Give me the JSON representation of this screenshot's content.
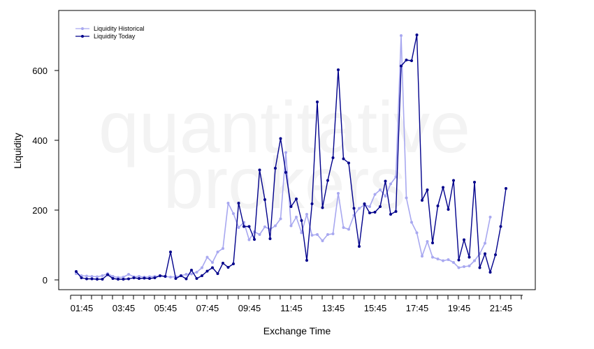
{
  "chart_data": {
    "type": "line",
    "watermark": [
      "quantitative",
      "brokers"
    ],
    "xlabel": "Exchange Time",
    "ylabel": "Liquidity",
    "x_tick_labels": [
      "01:45",
      "03:45",
      "05:45",
      "07:45",
      "09:45",
      "11:45",
      "13:45",
      "15:45",
      "17:45",
      "19:45",
      "21:45"
    ],
    "y_ticks": [
      0,
      200,
      400,
      600
    ],
    "ylim": [
      -27,
      770
    ],
    "legend_position": "top-left",
    "series": [
      {
        "name": "Liquidity Historical",
        "color": "#a8a8f0",
        "values": [
          18,
          12,
          11,
          10,
          9,
          12,
          18,
          10,
          7,
          8,
          16,
          9,
          10,
          8,
          9,
          10,
          11,
          10,
          8,
          9,
          12,
          16,
          17,
          22,
          35,
          65,
          50,
          80,
          90,
          220,
          190,
          150,
          165,
          115,
          138,
          130,
          152,
          145,
          155,
          175,
          365,
          155,
          180,
          135,
          188,
          128,
          130,
          112,
          130,
          132,
          248,
          150,
          145,
          185,
          205,
          215,
          210,
          245,
          258,
          240,
          275,
          295,
          700,
          235,
          165,
          135,
          68,
          110,
          65,
          60,
          55,
          58,
          50,
          35,
          38,
          40,
          55,
          75,
          105,
          180
        ]
      },
      {
        "name": "Liquidity Today",
        "color": "#00008b",
        "values": [
          24,
          6,
          3,
          3,
          2,
          2,
          15,
          4,
          2,
          2,
          3,
          6,
          4,
          5,
          4,
          6,
          12,
          10,
          80,
          4,
          12,
          3,
          28,
          4,
          12,
          25,
          35,
          18,
          48,
          36,
          46,
          220,
          153,
          153,
          116,
          315,
          230,
          118,
          320,
          405,
          308,
          210,
          232,
          170,
          56,
          218,
          510,
          207,
          285,
          350,
          602,
          347,
          335,
          205,
          96,
          218,
          192,
          194,
          210,
          283,
          188,
          196,
          613,
          630,
          628,
          702,
          228,
          258,
          106,
          212,
          265,
          202,
          285,
          57,
          115,
          65,
          280,
          35,
          75,
          22,
          72,
          153,
          262
        ]
      }
    ]
  }
}
